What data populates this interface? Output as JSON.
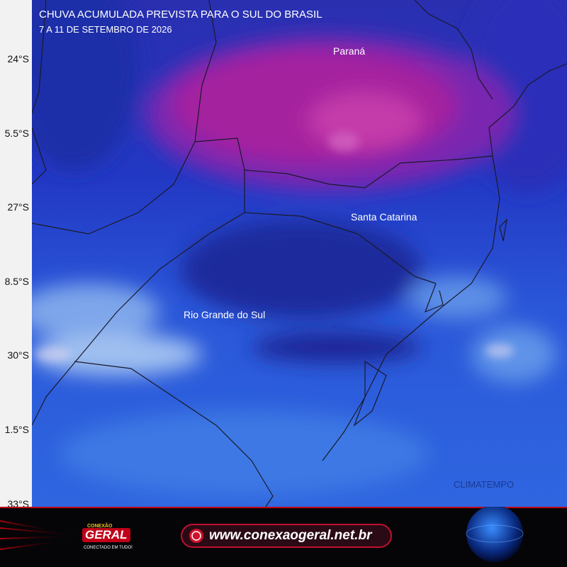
{
  "header": {
    "title": "CHUVA ACUMULADA PREVISTA PARA O SUL DO BRASIL",
    "subtitle": "7 A 11 DE SETEMBRO DE 2026"
  },
  "latitude_labels": [
    "24°S",
    "5.5°S",
    "27°S",
    "8.5°S",
    "30°S",
    "1.5°S",
    "33°S"
  ],
  "regions": [
    "Paraná",
    "Santa Catarina",
    "Rio Grande do Sul"
  ],
  "watermark": "CLIMATEMPO",
  "footer": {
    "logo_top": "CONEXÃO",
    "logo_main": "GERAL",
    "logo_tagline": "CONECTADO EM TUDO!",
    "url": "www.conexaogeral.net.br"
  }
}
